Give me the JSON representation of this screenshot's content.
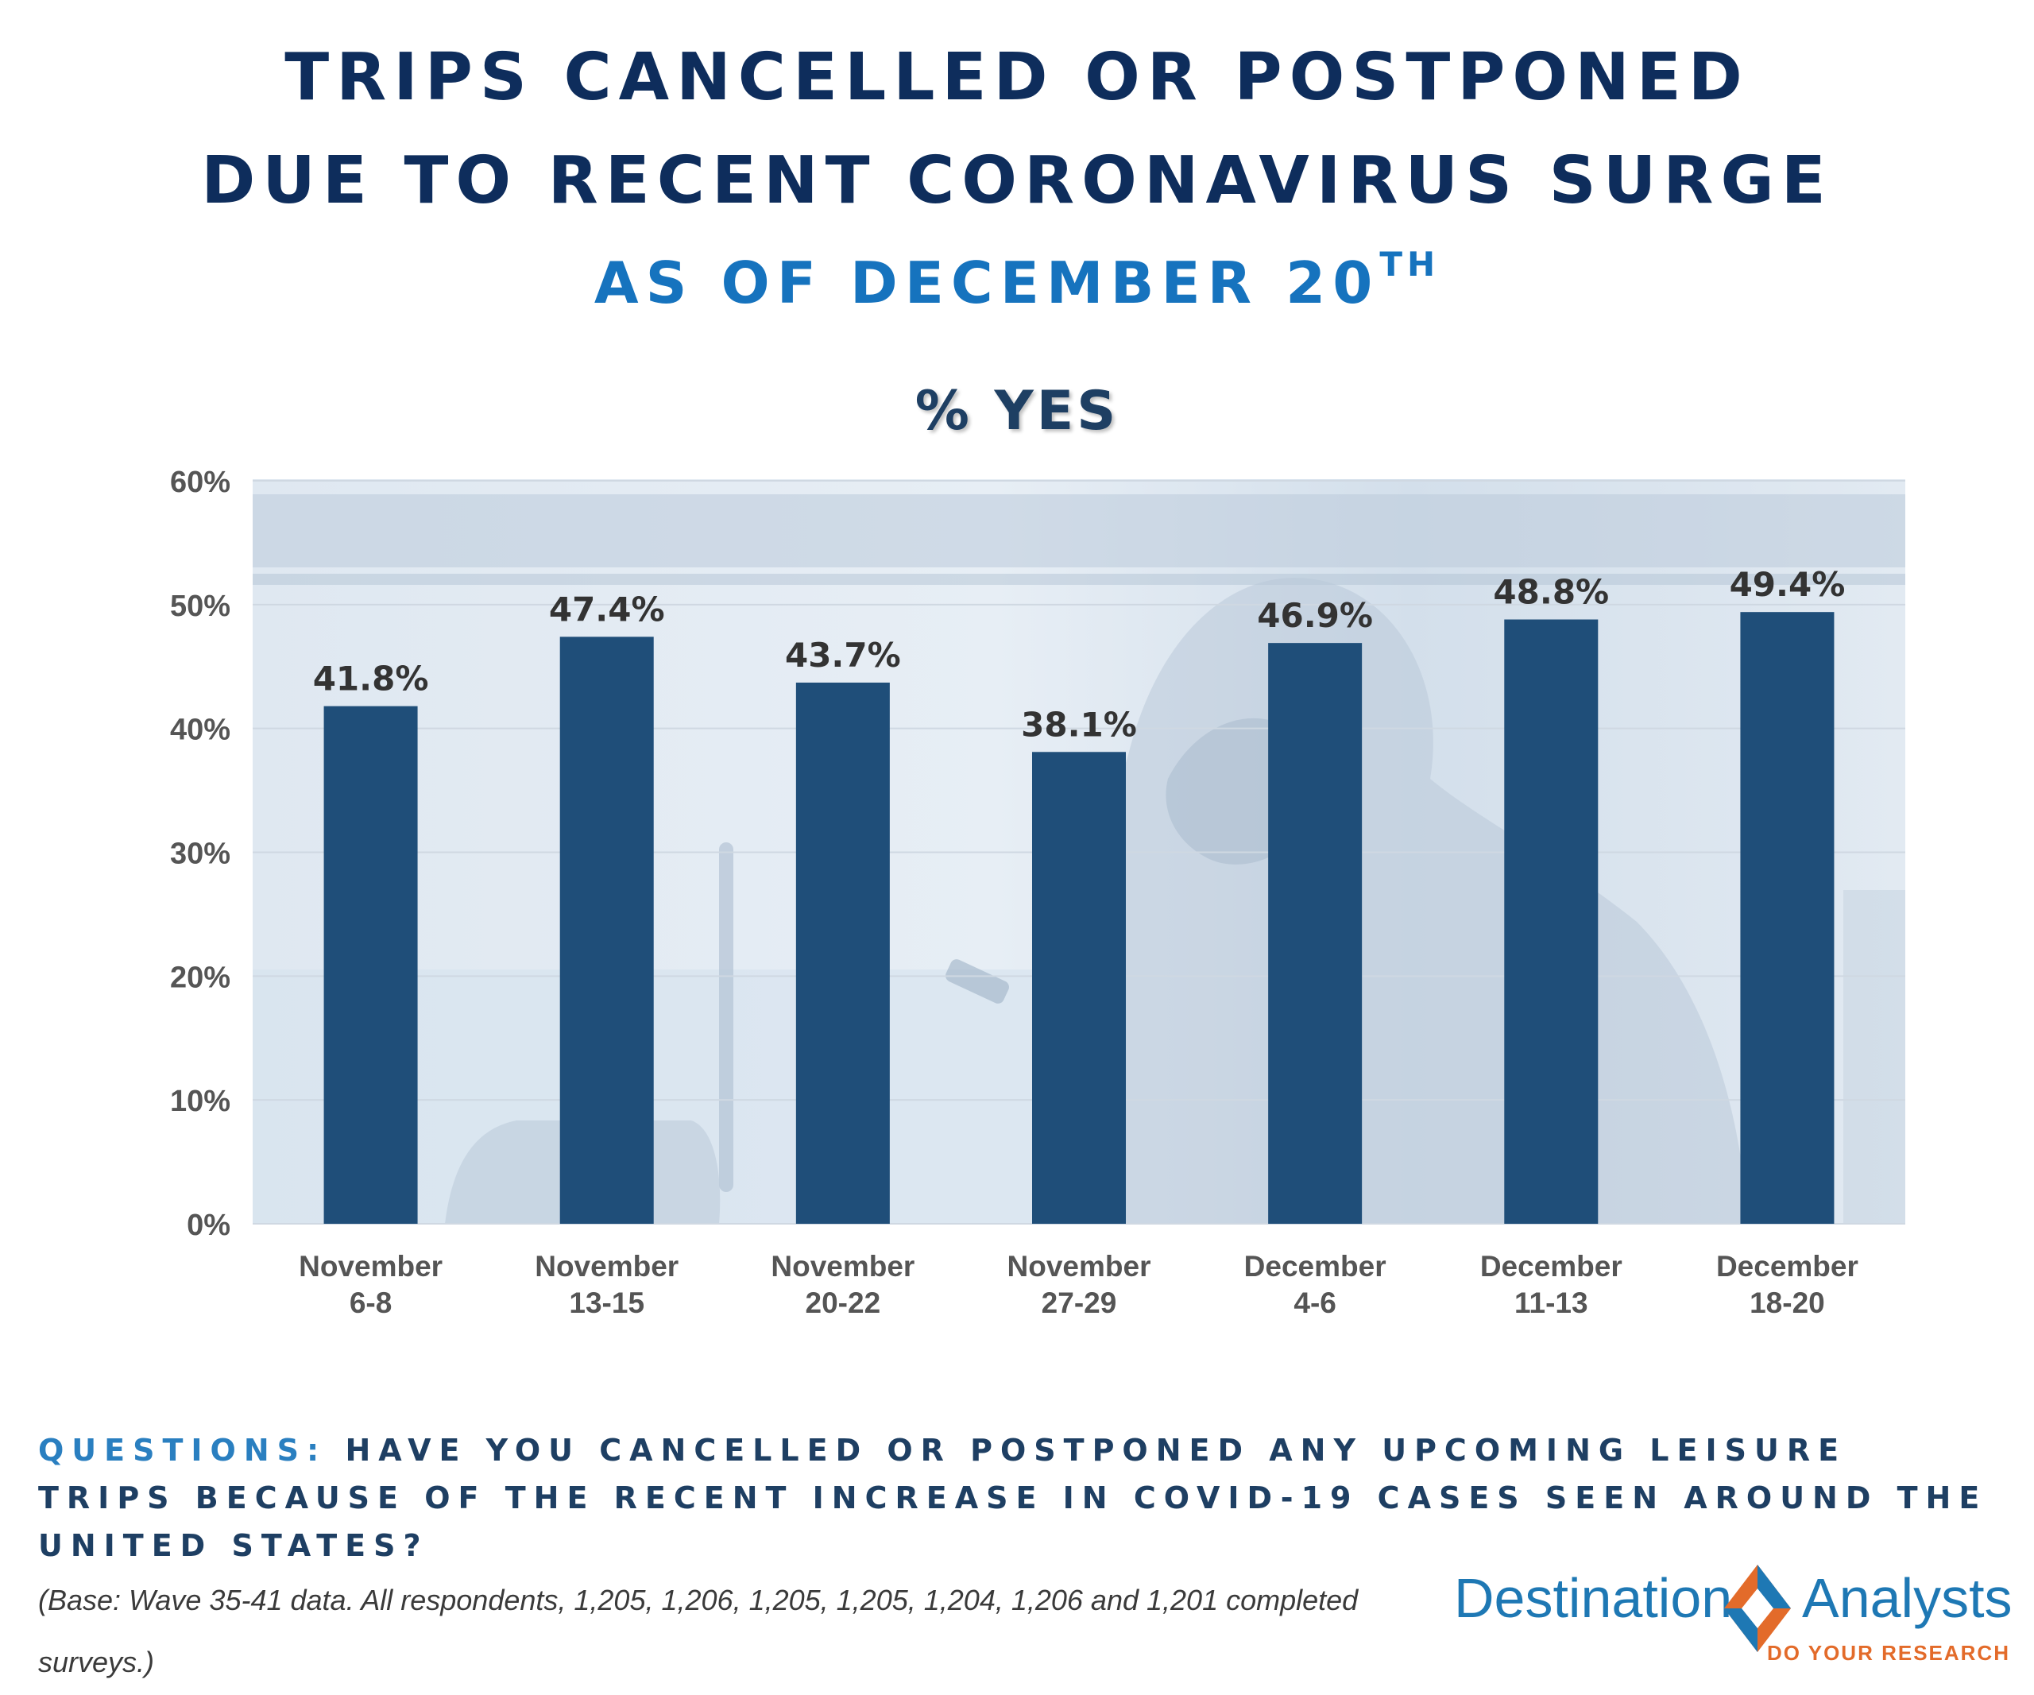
{
  "header": {
    "title_line1": "TRIPS CANCELLED OR POSTPONED",
    "title_line2": "DUE TO RECENT CORONAVIRUS SURGE",
    "subtitle": "AS OF DECEMBER 20",
    "subtitle_suffix": "TH"
  },
  "chart_data": {
    "type": "bar",
    "title": "% YES",
    "categories": [
      [
        "November",
        "6-8"
      ],
      [
        "November",
        "13-15"
      ],
      [
        "November",
        "20-22"
      ],
      [
        "November",
        "27-29"
      ],
      [
        "December",
        "4-6"
      ],
      [
        "December",
        "11-13"
      ],
      [
        "December",
        "18-20"
      ]
    ],
    "values": [
      41.8,
      47.4,
      43.7,
      38.1,
      46.9,
      48.8,
      49.4
    ],
    "value_labels": [
      "41.8%",
      "47.4%",
      "43.7%",
      "38.1%",
      "46.9%",
      "48.8%",
      "49.4%"
    ],
    "y_ticks": [
      0,
      10,
      20,
      30,
      40,
      50,
      60
    ],
    "y_tick_labels": [
      "0%",
      "10%",
      "20%",
      "30%",
      "40%",
      "50%",
      "60%"
    ],
    "ylim": [
      0,
      60
    ],
    "xlabel": "",
    "ylabel": "",
    "grid": true,
    "legend": "none",
    "bar_color": "#1f4e79"
  },
  "footer": {
    "question_label": "QUESTIONS:",
    "question_text": "HAVE YOU CANCELLED OR POSTPONED ANY UPCOMING LEISURE TRIPS BECAUSE OF THE RECENT INCREASE IN COVID-19 CASES SEEN AROUND THE UNITED STATES?",
    "base_note": "(Base: Wave 35-41 data. All respondents, 1,205, 1,206, 1,205, 1,205, 1,204, 1,206 and 1,201 completed surveys.)"
  },
  "logo": {
    "word1": "Destination",
    "word2": "Analysts",
    "tagline": "DO YOUR RESEARCH",
    "colors": {
      "blue": "#1e78b4",
      "orange": "#e36b2a"
    }
  },
  "colors": {
    "title": "#0e2d5c",
    "subtitle": "#1673be",
    "chart_title": "#1e3f63",
    "question_label": "#2a7fc0",
    "question_text": "#1e3f63",
    "photo_background_tint": "#c9d8e8"
  }
}
